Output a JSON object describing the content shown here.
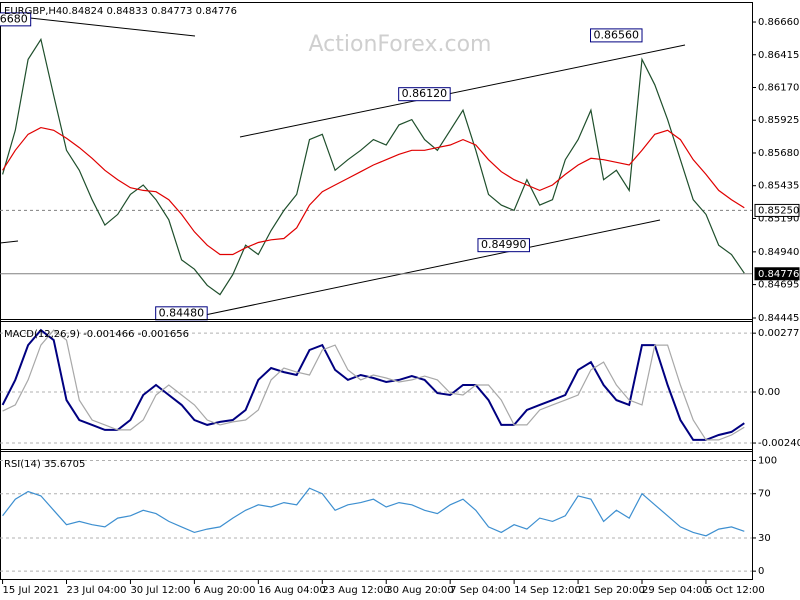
{
  "watermark": "ActionForex.com",
  "chart_data": [
    {
      "type": "line",
      "title": "EURGBP,H4",
      "subtitle": "0.84824 0.84833 0.84773 0.84776",
      "x": [
        0,
        1,
        2,
        3,
        4,
        5,
        6,
        7,
        8,
        9,
        10,
        11,
        12,
        13,
        14,
        15,
        16,
        17,
        18,
        19,
        20,
        21,
        22,
        23,
        24,
        25,
        26,
        27,
        28,
        29,
        30,
        31,
        32,
        33,
        34,
        35,
        36,
        37,
        38,
        39,
        40,
        41,
        42,
        43,
        44,
        45,
        46,
        47,
        48,
        49,
        50,
        51,
        52,
        53,
        54,
        55,
        56,
        57,
        58
      ],
      "series": [
        {
          "color": "#1f4f2c",
          "values": [
            0.8552,
            0.8585,
            0.8638,
            0.8653,
            0.8611,
            0.857,
            0.8555,
            0.8533,
            0.8514,
            0.8522,
            0.8537,
            0.8544,
            0.8533,
            0.8518,
            0.8488,
            0.8481,
            0.8469,
            0.8462,
            0.8477,
            0.8499,
            0.8492,
            0.851,
            0.8525,
            0.8537,
            0.8578,
            0.8582,
            0.8555,
            0.8563,
            0.857,
            0.8578,
            0.8574,
            0.8589,
            0.8593,
            0.8578,
            0.857,
            0.8585,
            0.86,
            0.857,
            0.8537,
            0.8529,
            0.8525,
            0.8548,
            0.8529,
            0.8533,
            0.8563,
            0.8578,
            0.86,
            0.8548,
            0.8555,
            0.854,
            0.8638,
            0.8619,
            0.8593,
            0.8563,
            0.8533,
            0.8522,
            0.8499,
            0.8492,
            0.8478
          ]
        },
        {
          "color": "#e00000",
          "values": [
            0.8555,
            0.857,
            0.8582,
            0.8587,
            0.8585,
            0.8579,
            0.8572,
            0.8564,
            0.8555,
            0.8548,
            0.8542,
            0.854,
            0.8539,
            0.8533,
            0.8522,
            0.8509,
            0.8499,
            0.8492,
            0.8492,
            0.8497,
            0.8501,
            0.8503,
            0.8504,
            0.8512,
            0.8529,
            0.8539,
            0.8544,
            0.8549,
            0.8554,
            0.8559,
            0.8563,
            0.8567,
            0.857,
            0.857,
            0.8572,
            0.8574,
            0.8578,
            0.8574,
            0.8563,
            0.8554,
            0.8548,
            0.8544,
            0.854,
            0.8544,
            0.8552,
            0.8559,
            0.8564,
            0.8563,
            0.8561,
            0.8559,
            0.857,
            0.8582,
            0.8585,
            0.8578,
            0.8563,
            0.8552,
            0.854,
            0.8533,
            0.8527
          ]
        }
      ],
      "xlim": [
        -0.2,
        58.6
      ],
      "ylim": [
        0.84415,
        0.86765
      ],
      "yticks": [
        {
          "value": 0.8666,
          "label": "0.86660"
        },
        0.86415,
        {
          "value": 0.8617,
          "label": "0.86170"
        },
        0.85925,
        {
          "value": 0.8568,
          "label": "0.85680"
        },
        0.85435,
        {
          "value": 0.8519,
          "label": "0.85190"
        },
        {
          "value": 0.8494,
          "label": "0.84940"
        },
        0.84695,
        0.84445
      ],
      "grid": false,
      "hlines": [
        {
          "value": 0.8525,
          "label": "0.85250",
          "style": "dashed",
          "highlight": "light"
        },
        {
          "value": 0.84776,
          "label": "0.84776",
          "style": "solid",
          "highlight": "dark"
        }
      ],
      "annotations": [
        {
          "value": 0.8668,
          "label": "6680",
          "x": 2.2
        },
        {
          "value": 0.8448,
          "label": "0.84480",
          "x": 16
        },
        {
          "value": 0.8612,
          "label": "0.86120",
          "x": 35
        },
        {
          "value": 0.8499,
          "label": "0.84990",
          "x": 41.2
        },
        {
          "value": 0.8656,
          "label": "0.86560",
          "x": 50
        }
      ]
    },
    {
      "type": "line",
      "title": "MACD(12,26,9) -0.001466 -0.001656",
      "x": [
        0,
        1,
        2,
        3,
        4,
        5,
        6,
        7,
        8,
        9,
        10,
        11,
        12,
        13,
        14,
        15,
        16,
        17,
        18,
        19,
        20,
        21,
        22,
        23,
        24,
        25,
        26,
        27,
        28,
        29,
        30,
        31,
        32,
        33,
        34,
        35,
        36,
        37,
        38,
        39,
        40,
        41,
        42,
        43,
        44,
        45,
        46,
        47,
        48,
        49,
        50,
        51,
        52,
        53,
        54,
        55,
        56,
        57,
        58
      ],
      "series": [
        {
          "color": "#000080",
          "values": [
            -0.00061,
            0.00057,
            0.00221,
            0.00292,
            0.00245,
            -0.00038,
            -0.00132,
            -0.00155,
            -0.00179,
            -0.00179,
            -0.00132,
            -0.00014,
            0.00033,
            -0.00014,
            -0.00061,
            -0.00132,
            -0.00155,
            -0.00141,
            -0.00132,
            -0.00085,
            0.00057,
            0.00113,
            0.00094,
            0.0008,
            0.00198,
            0.00221,
            0.00104,
            0.00057,
            0.0008,
            0.00066,
            0.00047,
            0.00057,
            0.00075,
            0.00057,
            -5e-05,
            -0.00014,
            0.00033,
            0.00033,
            -0.00038,
            -0.00155,
            -0.00155,
            -0.00085,
            -0.00061,
            -0.00038,
            -0.00014,
            0.00104,
            0.00141,
            0.00033,
            -0.00038,
            -0.00061,
            0.00221,
            0.00221,
            0.00033,
            -0.00132,
            -0.00226,
            -0.00226,
            -0.00203,
            -0.00188,
            -0.00147
          ]
        },
        {
          "color": "#a8a8a8",
          "values": [
            -0.0009,
            -0.00061,
            0.00057,
            0.00221,
            0.00292,
            0.00245,
            -0.00038,
            -0.00132,
            -0.00155,
            -0.00179,
            -0.00179,
            -0.00132,
            -0.00014,
            0.00033,
            -0.00014,
            -0.00061,
            -0.00132,
            -0.00155,
            -0.00141,
            -0.00132,
            -0.00085,
            0.00057,
            0.00113,
            0.00094,
            0.0008,
            0.00198,
            0.00221,
            0.00104,
            0.00057,
            0.0008,
            0.00066,
            0.00047,
            0.00057,
            0.00075,
            0.00057,
            -5e-05,
            -0.00014,
            0.00033,
            0.00033,
            -0.00038,
            -0.00155,
            -0.00155,
            -0.00085,
            -0.00061,
            -0.00038,
            -0.00014,
            0.00104,
            0.00141,
            0.00033,
            -0.00038,
            -0.00061,
            0.00221,
            0.00221,
            0.00033,
            -0.00132,
            -0.00226,
            -0.00226,
            -0.00203,
            -0.00166
          ]
        }
      ],
      "xlim": [
        -0.2,
        58.6
      ],
      "ylim": [
        -0.00283,
        0.00316
      ],
      "yticks": [
        0.002775,
        {
          "value": 0,
          "label": "0.00"
        },
        -0.002407
      ],
      "grid": true
    },
    {
      "type": "line",
      "title": "RSI(14) 35.6705",
      "x": [
        0,
        1,
        2,
        3,
        4,
        5,
        6,
        7,
        8,
        9,
        10,
        11,
        12,
        13,
        14,
        15,
        16,
        17,
        18,
        19,
        20,
        21,
        22,
        23,
        24,
        25,
        26,
        27,
        28,
        29,
        30,
        31,
        32,
        33,
        34,
        35,
        36,
        37,
        38,
        39,
        40,
        41,
        42,
        43,
        44,
        45,
        46,
        47,
        48,
        49,
        50,
        51,
        52,
        53,
        54,
        55,
        56,
        57,
        58
      ],
      "series": [
        {
          "color": "#3d8fd0",
          "values": [
            50,
            65,
            72,
            68,
            55,
            42,
            45,
            42,
            40,
            48,
            50,
            55,
            52,
            45,
            40,
            35,
            38,
            40,
            48,
            55,
            60,
            58,
            62,
            60,
            75,
            70,
            55,
            60,
            62,
            65,
            58,
            62,
            60,
            55,
            52,
            60,
            65,
            55,
            40,
            35,
            42,
            38,
            48,
            45,
            50,
            68,
            65,
            45,
            55,
            48,
            70,
            60,
            50,
            40,
            35,
            32,
            38,
            40,
            36
          ]
        }
      ],
      "xlim": [
        -0.2,
        58.6
      ],
      "ylim": [
        -8,
        105
      ],
      "yticks": [
        100,
        70,
        30,
        0
      ],
      "grid": true,
      "xticks": [
        {
          "value": 0,
          "label": "15 Jul 2021"
        },
        {
          "value": 5,
          "label": "23 Jul 04:00"
        },
        {
          "value": 10,
          "label": "30 Jul 12:00"
        },
        {
          "value": 15,
          "label": "6 Aug 20:00"
        },
        {
          "value": 20,
          "label": "16 Aug 04:00"
        },
        {
          "value": 25,
          "label": "23 Aug 12:00"
        },
        {
          "value": 30,
          "label": "30 Aug 20:00"
        },
        {
          "value": 35,
          "label": "7 Sep 04:00"
        },
        {
          "value": 40,
          "label": "14 Sep 12:00"
        },
        {
          "value": 45,
          "label": "21 Sep 20:00"
        },
        {
          "value": 50,
          "label": "29 Sep 04:00"
        },
        {
          "value": 55,
          "label": "6 Oct 12:00"
        }
      ]
    }
  ]
}
